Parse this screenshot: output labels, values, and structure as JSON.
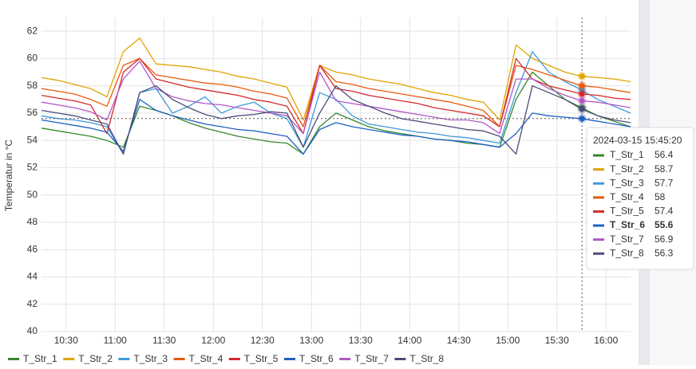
{
  "chart_data": {
    "type": "line",
    "y_label": "Temperatur in °C",
    "x": [
      "10:15",
      "10:25",
      "10:35",
      "10:45",
      "10:55",
      "11:05",
      "11:15",
      "11:25",
      "11:35",
      "11:45",
      "11:55",
      "12:05",
      "12:15",
      "12:25",
      "12:35",
      "12:45",
      "12:55",
      "13:05",
      "13:15",
      "13:25",
      "13:35",
      "13:45",
      "13:55",
      "14:05",
      "14:15",
      "14:25",
      "14:35",
      "14:45",
      "14:55",
      "15:05",
      "15:15",
      "15:25",
      "15:35",
      "15:45",
      "15:55",
      "16:05",
      "16:15"
    ],
    "xlim": [
      "10:15",
      "16:15"
    ],
    "xticks": [
      "10:30",
      "11:00",
      "11:30",
      "12:00",
      "12:30",
      "13:00",
      "13:30",
      "14:00",
      "14:30",
      "15:00",
      "15:30",
      "16:00"
    ],
    "ylim": [
      40,
      63
    ],
    "yticks": [
      40,
      42,
      44,
      46,
      48,
      50,
      52,
      54,
      56,
      58,
      60,
      62
    ],
    "grid": true,
    "series": [
      {
        "name": "T_Str_1",
        "color": "#37872d",
        "values": [
          54.9,
          54.7,
          54.5,
          54.3,
          54.0,
          53.5,
          56.5,
          56.2,
          55.8,
          55.3,
          54.9,
          54.6,
          54.3,
          54.1,
          53.9,
          53.8,
          53.0,
          55.0,
          56.0,
          55.5,
          55.0,
          54.7,
          54.5,
          54.3,
          54.1,
          54.0,
          53.8,
          53.7,
          53.5,
          57.0,
          59.0,
          58.0,
          57.0,
          56.4,
          55.8,
          55.4,
          55.0
        ]
      },
      {
        "name": "T_Str_2",
        "color": "#e0a400",
        "values": [
          58.6,
          58.4,
          58.1,
          57.8,
          57.2,
          60.5,
          61.5,
          59.6,
          59.5,
          59.4,
          59.2,
          59.0,
          58.7,
          58.5,
          58.2,
          57.9,
          55.5,
          59.5,
          59.0,
          58.8,
          58.5,
          58.3,
          58.1,
          57.8,
          57.5,
          57.3,
          57.0,
          56.8,
          55.5,
          61.0,
          60.0,
          59.5,
          59.0,
          58.7,
          58.6,
          58.5,
          58.3
        ]
      },
      {
        "name": "T_Str_3",
        "color": "#3d9ad9",
        "values": [
          55.8,
          55.6,
          55.5,
          55.3,
          55.0,
          53.0,
          57.5,
          57.8,
          56.0,
          56.5,
          57.2,
          56.0,
          56.5,
          56.8,
          56.0,
          55.6,
          53.5,
          57.5,
          57.0,
          55.8,
          55.2,
          55.0,
          54.8,
          54.6,
          54.5,
          54.3,
          54.2,
          54.0,
          53.8,
          57.5,
          60.5,
          59.0,
          58.3,
          57.7,
          57.0,
          56.5,
          56.0
        ]
      },
      {
        "name": "T_Str_4",
        "color": "#e8590c",
        "values": [
          57.8,
          57.6,
          57.4,
          57.0,
          56.5,
          59.5,
          60.0,
          58.8,
          58.6,
          58.4,
          58.2,
          58.1,
          57.9,
          57.6,
          57.4,
          57.1,
          55.0,
          59.5,
          58.3,
          58.1,
          57.8,
          57.6,
          57.4,
          57.2,
          57.0,
          56.8,
          56.5,
          56.2,
          55.0,
          59.5,
          59.2,
          58.8,
          58.4,
          58,
          57.9,
          57.7,
          57.5
        ]
      },
      {
        "name": "T_Str_5",
        "color": "#d6282b",
        "values": [
          57.3,
          57.1,
          56.9,
          56.6,
          54.5,
          59.0,
          60.0,
          58.5,
          58.2,
          57.9,
          57.7,
          57.5,
          57.3,
          57.0,
          56.8,
          56.5,
          54.5,
          59.5,
          57.8,
          57.6,
          57.3,
          57.1,
          56.9,
          56.7,
          56.4,
          56.2,
          56.0,
          55.8,
          55.0,
          60.0,
          58.5,
          58.0,
          57.7,
          57.4,
          57.3,
          57.1,
          57.0
        ]
      },
      {
        "name": "T_Str_6",
        "color": "#1f60c4",
        "highlighted": true,
        "values": [
          55.5,
          55.3,
          55.1,
          54.9,
          54.6,
          53.2,
          57.0,
          56.2,
          55.8,
          55.5,
          55.2,
          55.0,
          54.8,
          54.7,
          54.5,
          54.3,
          53.0,
          54.8,
          55.3,
          55.0,
          54.8,
          54.6,
          54.4,
          54.3,
          54.1,
          54.0,
          53.9,
          53.7,
          53.5,
          54.5,
          56.0,
          55.8,
          55.7,
          55.6,
          55.4,
          55.2,
          55.0
        ]
      },
      {
        "name": "T_Str_7",
        "color": "#b357c8",
        "values": [
          56.8,
          56.6,
          56.4,
          56.1,
          55.5,
          58.5,
          59.8,
          57.8,
          57.2,
          56.9,
          56.7,
          56.6,
          56.4,
          56.2,
          56.0,
          55.8,
          54.5,
          59.0,
          56.9,
          56.7,
          56.5,
          56.3,
          56.1,
          55.9,
          55.7,
          55.5,
          55.5,
          55.3,
          54.5,
          58.5,
          58.5,
          57.8,
          57.3,
          56.9,
          56.8,
          56.6,
          56.4
        ]
      },
      {
        "name": "T_Str_8",
        "color": "#4b4b7a",
        "values": [
          56.2,
          56.0,
          55.8,
          55.5,
          55.2,
          53.0,
          57.5,
          58.0,
          57.0,
          56.4,
          55.9,
          55.6,
          55.8,
          55.9,
          56.1,
          56.0,
          53.5,
          56.0,
          58.0,
          57.0,
          56.5,
          56.0,
          55.6,
          55.4,
          55.2,
          55.0,
          54.8,
          54.7,
          54.3,
          53.0,
          58.0,
          57.5,
          57.0,
          56.3,
          55.8,
          55.5,
          55.3
        ]
      }
    ],
    "tooltip": {
      "time": "2024-03-15 15:45:20"
    }
  }
}
